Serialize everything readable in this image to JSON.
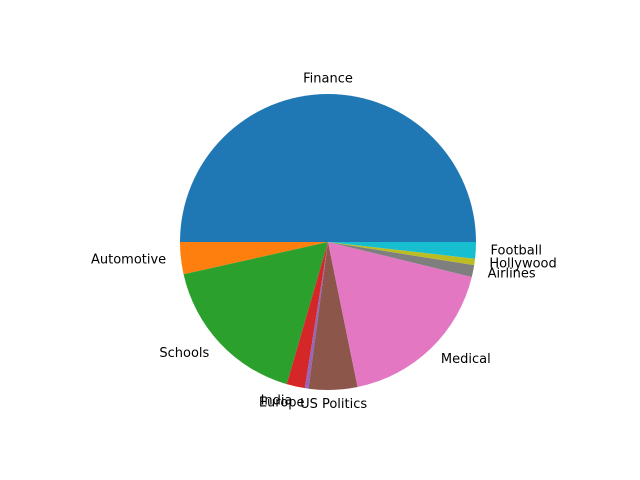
{
  "chart_data": {
    "type": "pie",
    "start_angle_deg": 0,
    "direction": "counterclockwise",
    "slices": [
      {
        "label": "Finance",
        "value": 50.0,
        "color": "#1f77b4"
      },
      {
        "label": "Automotive",
        "value": 3.5,
        "color": "#ff7f0e"
      },
      {
        "label": "Schools",
        "value": 17.0,
        "color": "#2ca02c"
      },
      {
        "label": "India",
        "value": 2.0,
        "color": "#d62728"
      },
      {
        "label": "Europe",
        "value": 0.4,
        "color": "#9467bd"
      },
      {
        "label": "US Politics",
        "value": 5.3,
        "color": "#8c564b"
      },
      {
        "label": "Medical",
        "value": 18.0,
        "color": "#e377c2"
      },
      {
        "label": "Airlines",
        "value": 1.3,
        "color": "#7f7f7f"
      },
      {
        "label": "Hollywood",
        "value": 0.7,
        "color": "#bcbd22"
      },
      {
        "label": "Football",
        "value": 1.8,
        "color": "#17becf"
      }
    ]
  }
}
